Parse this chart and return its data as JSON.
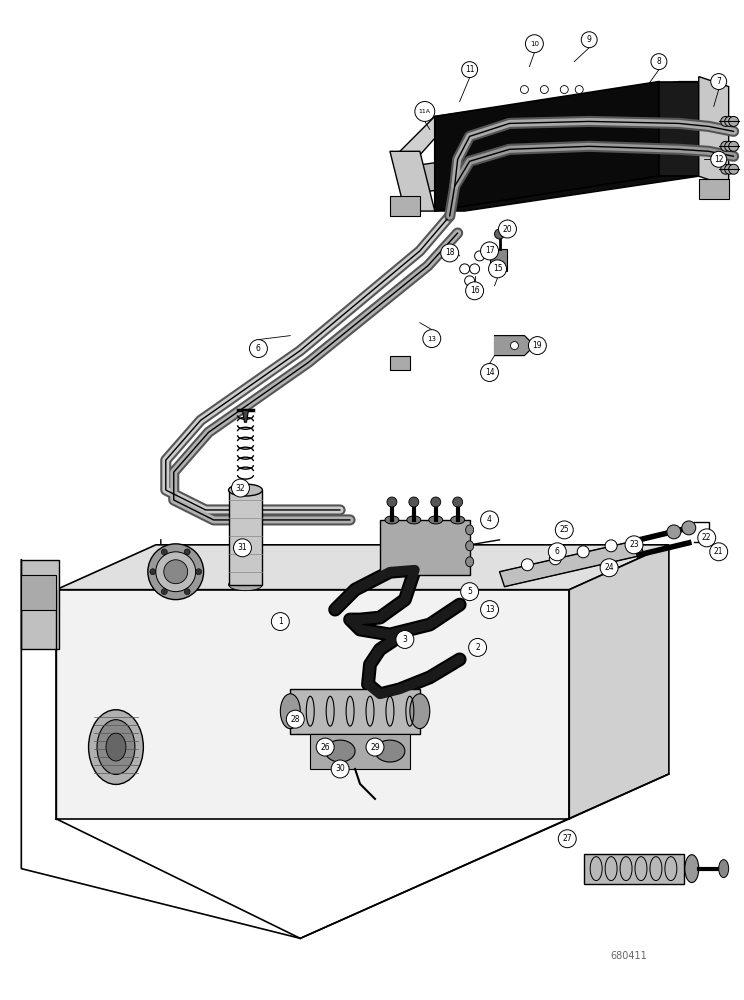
{
  "background_color": "#ffffff",
  "figure_width": 7.44,
  "figure_height": 10.0,
  "dpi": 100,
  "watermark": "680411",
  "watermark_color": "#666666",
  "watermark_fontsize": 7
}
